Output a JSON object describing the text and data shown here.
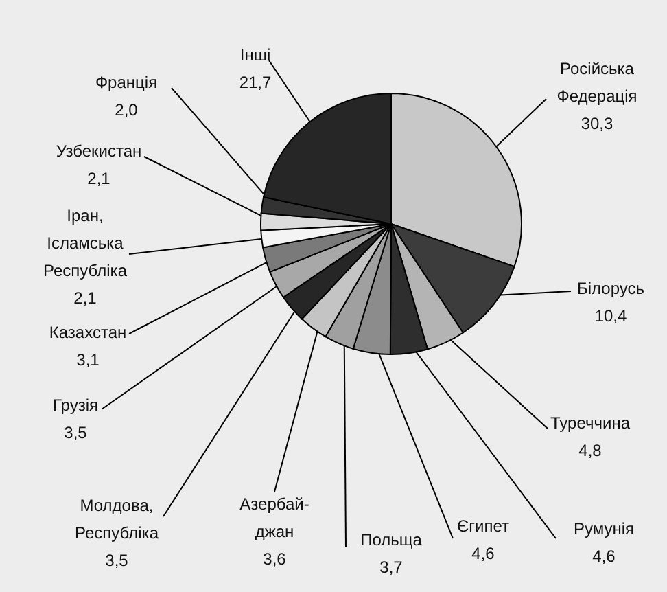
{
  "chart_data": {
    "type": "pie",
    "categories": [
      "Російська Федерація",
      "Білорусь",
      "Туреччина",
      "Румунія",
      "Єгипет",
      "Польща",
      "Азербай-джан",
      "Молдова, Республіка",
      "Грузія",
      "Казахстан",
      "Іран, Ісламська Республіка",
      "Узбекистан",
      "Франція",
      "Інші"
    ],
    "values": [
      30.3,
      10.4,
      4.8,
      4.6,
      4.6,
      3.7,
      3.6,
      3.5,
      3.5,
      3.1,
      2.1,
      2.1,
      2.0,
      21.7
    ],
    "colors": [
      "#c8c8c8",
      "#3c3c3c",
      "#b4b4b4",
      "#2e2e2e",
      "#8c8c8c",
      "#a0a0a0",
      "#c4c4c4",
      "#262626",
      "#a8a8a8",
      "#7a7a7a",
      "#f4f4f4",
      "#dcdcdc",
      "#333333",
      "#262626"
    ],
    "value_labels": [
      "30,3",
      "10,4",
      "4,8",
      "4,6",
      "4,6",
      "3,7",
      "3,6",
      "3,5",
      "3,5",
      "3,1",
      "2,1",
      "2,1",
      "2,0",
      "21,7"
    ]
  }
}
